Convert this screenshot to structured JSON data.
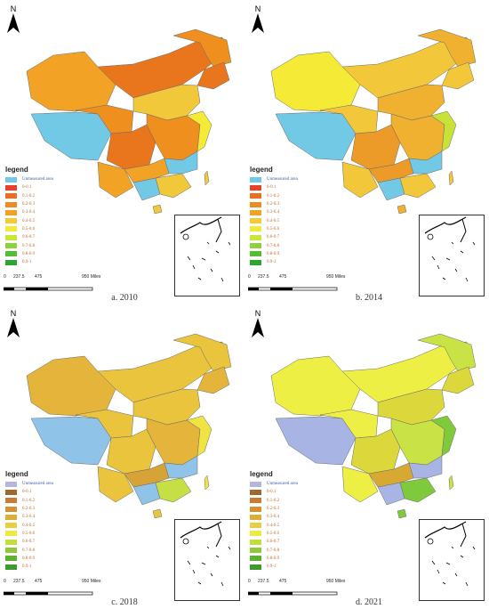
{
  "north_label": "N",
  "legend": {
    "title": "legend",
    "items": [
      {
        "label": "Unmeasured area"
      },
      {
        "label": "0-0.1"
      },
      {
        "label": "0.1-0.2"
      },
      {
        "label": "0.2-0.3"
      },
      {
        "label": "0.3-0.4"
      },
      {
        "label": "0.4-0.5"
      },
      {
        "label": "0.5-0.6"
      },
      {
        "label": "0.6-0.7"
      },
      {
        "label": "0.7-0.8"
      },
      {
        "label": "0.8-0.9"
      },
      {
        "label": "0.9-1"
      }
    ]
  },
  "scale": {
    "labels": [
      "0",
      "237.5",
      "475",
      "950 Miles"
    ]
  },
  "panels": [
    {
      "caption": "a. 2010",
      "colors": {
        "unmeasured": "#72c9e6",
        "c1": "#f2a326",
        "c2": "#ee8f1e",
        "c3": "#e9761c",
        "c4": "#f0c83a",
        "c5": "#f5ea36"
      },
      "legend_colors": [
        "#72c9e6",
        "#e8412a",
        "#ee6d1e",
        "#f08a22",
        "#f2a326",
        "#f5cc2e",
        "#f2ea3a",
        "#c8e63a",
        "#8fd13a",
        "#55bd33",
        "#2ea52e"
      ]
    },
    {
      "caption": "b. 2014",
      "colors": {
        "unmeasured": "#72c9e6",
        "c1": "#f5ea36",
        "c2": "#f2c83a",
        "c3": "#f0b030",
        "c4": "#ec9a28",
        "c5": "#c9e23a"
      },
      "legend_colors": [
        "#72c9e6",
        "#e8412a",
        "#ee6d1e",
        "#f08a22",
        "#f2a326",
        "#f5cc2e",
        "#f2ea3a",
        "#c8e63a",
        "#8fd13a",
        "#55bd33",
        "#2ea52e"
      ]
    },
    {
      "caption": "c. 2018",
      "colors": {
        "unmeasured": "#8fc3e8",
        "c1": "#e5b43a",
        "c2": "#e9c43c",
        "c3": "#f0e442",
        "c4": "#d7a336",
        "c5": "#c6df45"
      },
      "legend_colors": [
        "#b5b5e0",
        "#9c6a30",
        "#cc7a30",
        "#d8912f",
        "#ddac3a",
        "#e7cf3f",
        "#ecea44",
        "#c2dd3f",
        "#8fc93a",
        "#5faf30",
        "#3c9a2f"
      ]
    },
    {
      "caption": "d. 2021",
      "colors": {
        "unmeasured": "#a7b4e4",
        "c1": "#eeef45",
        "c2": "#dcd83c",
        "c3": "#c9e347",
        "c4": "#d8a932",
        "c5": "#7ec93c"
      },
      "legend_colors": [
        "#b5b5e0",
        "#9c6a30",
        "#cc7a30",
        "#d8912f",
        "#ddac3a",
        "#e7cf3f",
        "#ecea44",
        "#c2dd3f",
        "#8fc93a",
        "#5faf30",
        "#3c9a2f"
      ]
    }
  ]
}
